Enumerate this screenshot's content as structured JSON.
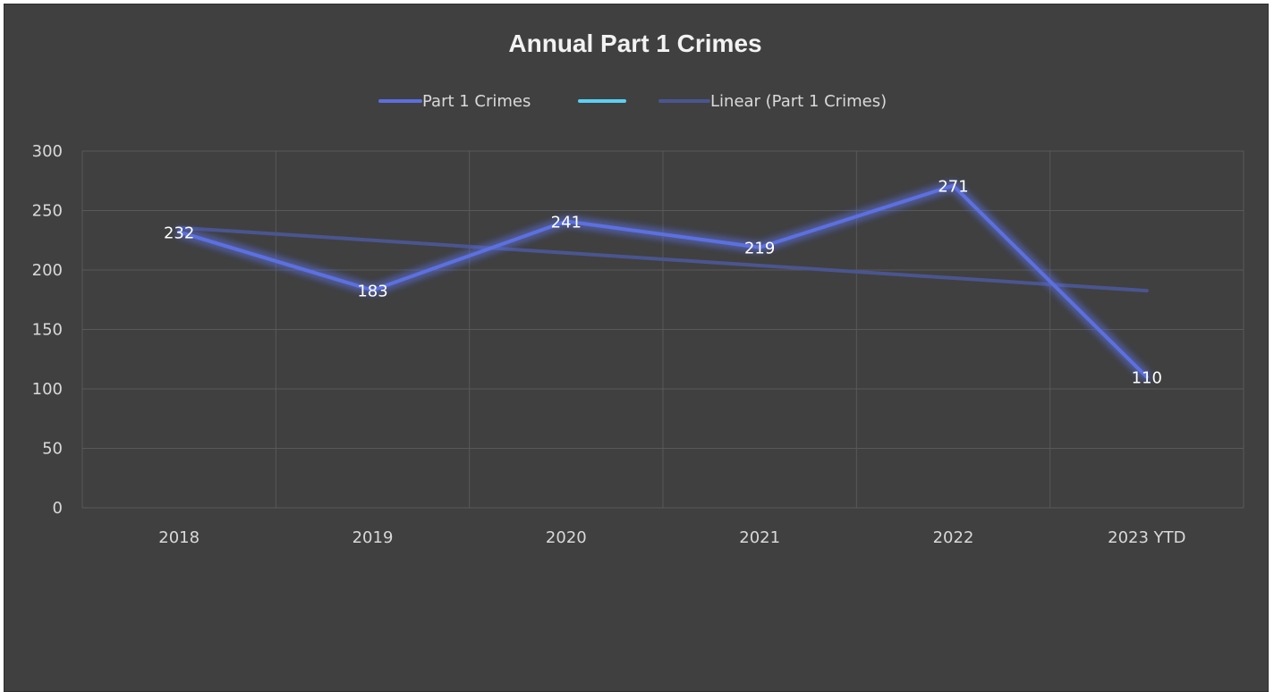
{
  "chart_data": {
    "type": "line",
    "title": "Annual Part 1 Crimes",
    "categories": [
      "2018",
      "2019",
      "2020",
      "2021",
      "2022",
      "2023 YTD"
    ],
    "series": [
      {
        "name": "Part 1 Crimes",
        "values": [
          232,
          183,
          241,
          219,
          271,
          110
        ],
        "color": "#5b6fe0",
        "data_labels": true
      },
      {
        "name": "Linear (Part 1 Crimes)",
        "values": [
          235.6,
          225.0,
          214.4,
          203.8,
          193.2,
          182.6
        ],
        "color": "#4a5590",
        "trendline": true
      }
    ],
    "legend": {
      "placement": "top",
      "entries": [
        {
          "label": "Part 1 Crimes",
          "color": "#5b6fe0"
        },
        {
          "label": "",
          "color": "#5ad0f5"
        },
        {
          "label": "Linear (Part 1 Crimes)",
          "color": "#4a5590"
        }
      ]
    },
    "ylim": [
      0,
      300
    ],
    "yticks": [
      0,
      50,
      100,
      150,
      200,
      250,
      300
    ],
    "grid": true,
    "xlabel": "",
    "ylabel": "",
    "background": "#404040",
    "grid_color": "#595959"
  }
}
